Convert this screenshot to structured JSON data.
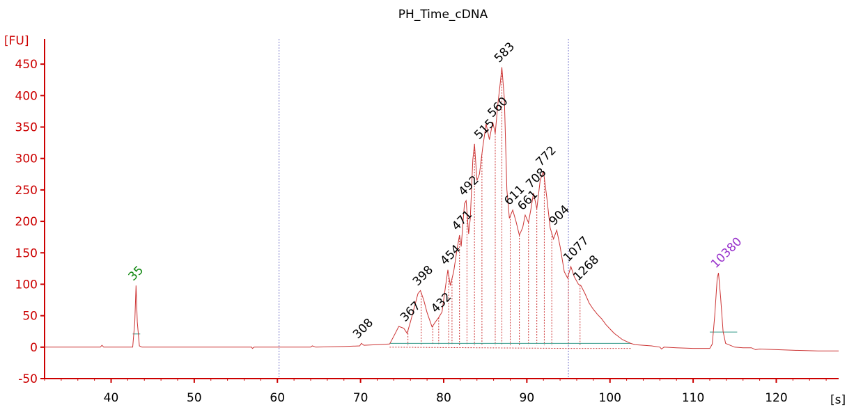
{
  "chart_data": {
    "type": "line",
    "title": "PH_Time_cDNA",
    "ylabel": "[FU]",
    "xlabel": "[s]",
    "xlim": [
      32,
      127.5
    ],
    "ylim": [
      -50,
      490
    ],
    "x_ticks": [
      "40",
      "50",
      "60",
      "70",
      "80",
      "90",
      "100",
      "110",
      "120"
    ],
    "y_ticks": [
      "-50",
      "0",
      "50",
      "100",
      "150",
      "200",
      "250",
      "300",
      "350",
      "400",
      "450"
    ],
    "grid": false,
    "colors": {
      "trace": "#cc3333",
      "axis": "#cc0000",
      "marker_line": "#7777cc",
      "baseline": "#339988",
      "lower_marker": "#118811",
      "upper_marker": "#9933cc"
    },
    "marker_lines_x": [
      60.2,
      95
    ],
    "trace": [
      [
        32,
        0
      ],
      [
        38.7,
        0
      ],
      [
        38.9,
        3
      ],
      [
        39.1,
        0
      ],
      [
        42.6,
        0
      ],
      [
        42.85,
        40
      ],
      [
        43.0,
        98
      ],
      [
        43.15,
        40
      ],
      [
        43.4,
        2
      ],
      [
        43.7,
        0
      ],
      [
        56.9,
        0
      ],
      [
        57.0,
        -2
      ],
      [
        57.2,
        0
      ],
      [
        64,
        0
      ],
      [
        64.2,
        2
      ],
      [
        64.6,
        0
      ],
      [
        68,
        1
      ],
      [
        69.9,
        2
      ],
      [
        70.1,
        6
      ],
      [
        70.4,
        3
      ],
      [
        72,
        4
      ],
      [
        73.5,
        5
      ],
      [
        74.1,
        20
      ],
      [
        74.6,
        33
      ],
      [
        75.2,
        30
      ],
      [
        75.6,
        22
      ],
      [
        76.0,
        40
      ],
      [
        76.5,
        65
      ],
      [
        76.9,
        85
      ],
      [
        77.2,
        90
      ],
      [
        77.6,
        75
      ],
      [
        78.0,
        55
      ],
      [
        78.6,
        32
      ],
      [
        79.0,
        40
      ],
      [
        79.4,
        47
      ],
      [
        79.8,
        56
      ],
      [
        80.2,
        95
      ],
      [
        80.5,
        123
      ],
      [
        80.8,
        98
      ],
      [
        81.2,
        120
      ],
      [
        81.6,
        155
      ],
      [
        81.9,
        178
      ],
      [
        82.1,
        160
      ],
      [
        82.5,
        228
      ],
      [
        82.7,
        233
      ],
      [
        83.0,
        180
      ],
      [
        83.2,
        205
      ],
      [
        83.5,
        298
      ],
      [
        83.7,
        323
      ],
      [
        84.0,
        265
      ],
      [
        84.3,
        275
      ],
      [
        84.7,
        318
      ],
      [
        85.1,
        355
      ],
      [
        85.5,
        330
      ],
      [
        85.9,
        358
      ],
      [
        86.2,
        340
      ],
      [
        86.5,
        385
      ],
      [
        86.8,
        420
      ],
      [
        87.0,
        445
      ],
      [
        87.3,
        395
      ],
      [
        87.6,
        250
      ],
      [
        87.9,
        205
      ],
      [
        88.3,
        218
      ],
      [
        88.7,
        200
      ],
      [
        89.1,
        178
      ],
      [
        89.5,
        190
      ],
      [
        89.8,
        210
      ],
      [
        90.2,
        198
      ],
      [
        90.5,
        220
      ],
      [
        90.8,
        245
      ],
      [
        91.2,
        220
      ],
      [
        91.6,
        265
      ],
      [
        92.0,
        280
      ],
      [
        92.4,
        238
      ],
      [
        92.8,
        190
      ],
      [
        93.2,
        172
      ],
      [
        93.6,
        186
      ],
      [
        94.0,
        160
      ],
      [
        94.5,
        120
      ],
      [
        94.9,
        110
      ],
      [
        95.3,
        128
      ],
      [
        95.7,
        112
      ],
      [
        96.2,
        100
      ],
      [
        96.5,
        98
      ],
      [
        97.0,
        85
      ],
      [
        97.5,
        70
      ],
      [
        98.0,
        60
      ],
      [
        98.5,
        52
      ],
      [
        99.0,
        45
      ],
      [
        99.5,
        36
      ],
      [
        100.0,
        29
      ],
      [
        100.5,
        22
      ],
      [
        101.0,
        17
      ],
      [
        101.5,
        12
      ],
      [
        102.0,
        9
      ],
      [
        102.5,
        6
      ],
      [
        103.0,
        4
      ],
      [
        104.0,
        3
      ],
      [
        105.0,
        2
      ],
      [
        106.0,
        0
      ],
      [
        106.2,
        -3
      ],
      [
        106.5,
        0
      ],
      [
        108.0,
        -1
      ],
      [
        110.0,
        -2
      ],
      [
        112.0,
        -2
      ],
      [
        112.3,
        5
      ],
      [
        112.6,
        50
      ],
      [
        112.9,
        110
      ],
      [
        113.05,
        118
      ],
      [
        113.3,
        80
      ],
      [
        113.6,
        25
      ],
      [
        113.9,
        6
      ],
      [
        115.0,
        0
      ],
      [
        116.0,
        -1
      ],
      [
        117.0,
        -1
      ],
      [
        117.5,
        -4
      ],
      [
        118.0,
        -3
      ],
      [
        120.0,
        -4
      ],
      [
        122.0,
        -5
      ],
      [
        125.0,
        -6
      ],
      [
        127.5,
        -6
      ]
    ],
    "peaks": [
      {
        "label": "35",
        "x": 43.0,
        "y": 98,
        "color": "#118811"
      },
      {
        "label": "308",
        "x": 70.0,
        "y": 6,
        "color": "#000000"
      },
      {
        "label": "367",
        "x": 75.7,
        "y": 33,
        "color": "#000000"
      },
      {
        "label": "398",
        "x": 77.2,
        "y": 90,
        "color": "#000000"
      },
      {
        "label": "432",
        "x": 79.4,
        "y": 47,
        "color": "#000000"
      },
      {
        "label": "454",
        "x": 80.5,
        "y": 123,
        "color": "#000000"
      },
      {
        "label": "471",
        "x": 81.9,
        "y": 178,
        "color": "#000000"
      },
      {
        "label": "492",
        "x": 82.7,
        "y": 233,
        "color": "#000000"
      },
      {
        "label": "515",
        "x": 84.6,
        "y": 323,
        "color": "#000000"
      },
      {
        "label": "560",
        "x": 86.2,
        "y": 358,
        "color": "#000000"
      },
      {
        "label": "583",
        "x": 87.0,
        "y": 445,
        "color": "#000000"
      },
      {
        "label": "611",
        "x": 88.2,
        "y": 218,
        "color": "#000000"
      },
      {
        "label": "661",
        "x": 89.8,
        "y": 210,
        "color": "#000000"
      },
      {
        "label": "708",
        "x": 90.8,
        "y": 245,
        "color": "#000000"
      },
      {
        "label": "772",
        "x": 92.0,
        "y": 280,
        "color": "#000000"
      },
      {
        "label": "904",
        "x": 93.6,
        "y": 186,
        "color": "#000000"
      },
      {
        "label": "1077",
        "x": 95.3,
        "y": 128,
        "color": "#000000"
      },
      {
        "label": "1268",
        "x": 96.5,
        "y": 98,
        "color": "#000000"
      },
      {
        "label": "10380",
        "x": 113.05,
        "y": 118,
        "color": "#9933cc"
      }
    ],
    "dropline_x": [
      75.7,
      77.3,
      78.7,
      79.4,
      80.6,
      81.0,
      81.9,
      82.8,
      83.7,
      84.6,
      86.2,
      87.0,
      88.0,
      89.1,
      90.2,
      91.2,
      92.1,
      93.0,
      95.0,
      96.4
    ],
    "baselines": [
      {
        "x1": 73.5,
        "x2": 102.5,
        "y": 6
      },
      {
        "x1": 42.6,
        "x2": 43.5,
        "y": 21
      },
      {
        "x1": 112.0,
        "x2": 115.3,
        "y": 24
      }
    ]
  }
}
